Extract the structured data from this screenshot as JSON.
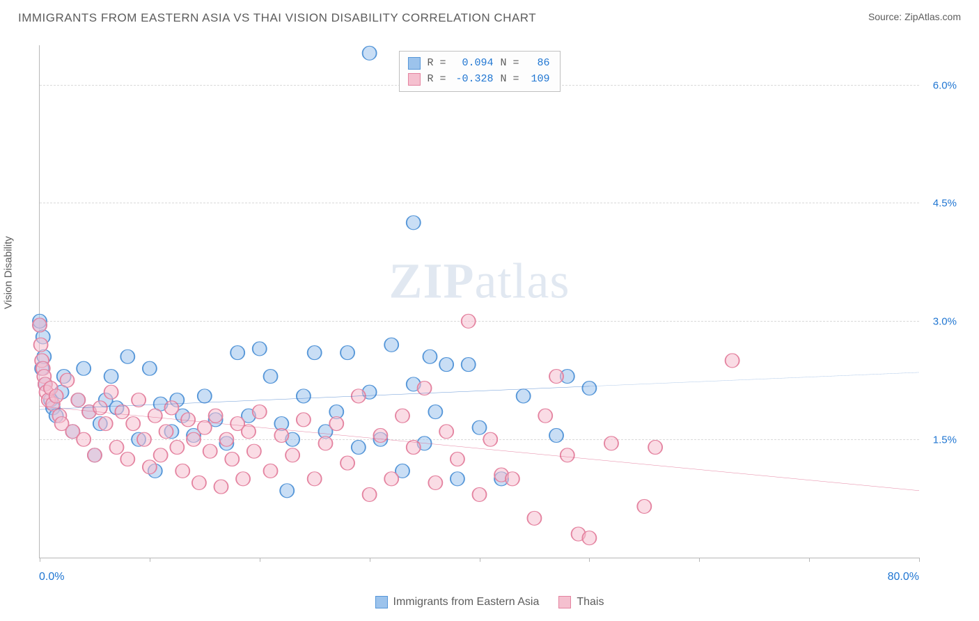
{
  "header": {
    "title": "IMMIGRANTS FROM EASTERN ASIA VS THAI VISION DISABILITY CORRELATION CHART",
    "source_label": "Source:",
    "source_name": "ZipAtlas.com"
  },
  "watermark": {
    "zip": "ZIP",
    "atlas": "atlas"
  },
  "chart": {
    "type": "scatter",
    "y_axis_title": "Vision Disability",
    "xlim": [
      0,
      80
    ],
    "ylim": [
      0,
      6.5
    ],
    "x_min_label": "0.0%",
    "x_max_label": "80.0%",
    "x_ticks": [
      0,
      10,
      20,
      30,
      40,
      50,
      60,
      70,
      80
    ],
    "y_gridlines": [
      1.5,
      3.0,
      4.5,
      6.0
    ],
    "y_tick_labels": [
      "1.5%",
      "3.0%",
      "4.5%",
      "6.0%"
    ],
    "background_color": "#ffffff",
    "grid_color": "#d9d9d9",
    "axis_color": "#b7b7b7",
    "label_color": "#2076d2",
    "text_color": "#5c5c5c",
    "point_radius": 10,
    "point_opacity": 0.55,
    "series": [
      {
        "name": "Immigrants from Eastern Asia",
        "fill_color": "#9cc3ec",
        "stroke_color": "#5596d8",
        "line_color": "#1f66c1",
        "r_value": "0.094",
        "n_value": "86",
        "trend": {
          "y0": 1.88,
          "y1": 2.35,
          "solid_until_x": 50
        },
        "points": [
          [
            0.0,
            2.95
          ],
          [
            0.0,
            3.0
          ],
          [
            0.2,
            2.4
          ],
          [
            0.3,
            2.8
          ],
          [
            0.4,
            2.55
          ],
          [
            0.5,
            2.2
          ],
          [
            30.0,
            6.4
          ],
          [
            34.0,
            4.25
          ],
          [
            1.0,
            2.0
          ],
          [
            1.2,
            1.9
          ],
          [
            1.5,
            1.8
          ],
          [
            2.0,
            2.1
          ],
          [
            2.2,
            2.3
          ],
          [
            3.0,
            1.6
          ],
          [
            3.5,
            2.0
          ],
          [
            4.0,
            2.4
          ],
          [
            4.5,
            1.85
          ],
          [
            5.0,
            1.3
          ],
          [
            5.5,
            1.7
          ],
          [
            6.0,
            2.0
          ],
          [
            6.5,
            2.3
          ],
          [
            7.0,
            1.9
          ],
          [
            8.0,
            2.55
          ],
          [
            9.0,
            1.5
          ],
          [
            10.0,
            2.4
          ],
          [
            10.5,
            1.1
          ],
          [
            11.0,
            1.95
          ],
          [
            12.0,
            1.6
          ],
          [
            12.5,
            2.0
          ],
          [
            13.0,
            1.8
          ],
          [
            14.0,
            1.55
          ],
          [
            15.0,
            2.05
          ],
          [
            16.0,
            1.75
          ],
          [
            17.0,
            1.45
          ],
          [
            18.0,
            2.6
          ],
          [
            19.0,
            1.8
          ],
          [
            20.0,
            2.65
          ],
          [
            21.0,
            2.3
          ],
          [
            22.0,
            1.7
          ],
          [
            22.5,
            0.85
          ],
          [
            23.0,
            1.5
          ],
          [
            24.0,
            2.05
          ],
          [
            25.0,
            2.6
          ],
          [
            26.0,
            1.6
          ],
          [
            27.0,
            1.85
          ],
          [
            28.0,
            2.6
          ],
          [
            29.0,
            1.4
          ],
          [
            30.0,
            2.1
          ],
          [
            31.0,
            1.5
          ],
          [
            32.0,
            2.7
          ],
          [
            33.0,
            1.1
          ],
          [
            34.0,
            2.2
          ],
          [
            35.0,
            1.45
          ],
          [
            35.5,
            2.55
          ],
          [
            36.0,
            1.85
          ],
          [
            37.0,
            2.45
          ],
          [
            38.0,
            1.0
          ],
          [
            39.0,
            2.45
          ],
          [
            40.0,
            1.65
          ],
          [
            42.0,
            1.0
          ],
          [
            44.0,
            2.05
          ],
          [
            47.0,
            1.55
          ],
          [
            48.0,
            2.3
          ],
          [
            50.0,
            2.15
          ]
        ]
      },
      {
        "name": "Thais",
        "fill_color": "#f5c0cf",
        "stroke_color": "#e483a0",
        "line_color": "#d94b77",
        "r_value": "-0.328",
        "n_value": "109",
        "trend": {
          "y0": 1.92,
          "y1": 0.85,
          "solid_until_x": 80
        },
        "points": [
          [
            0.0,
            2.95
          ],
          [
            0.1,
            2.7
          ],
          [
            0.2,
            2.5
          ],
          [
            0.3,
            2.4
          ],
          [
            0.4,
            2.3
          ],
          [
            0.5,
            2.2
          ],
          [
            0.6,
            2.1
          ],
          [
            0.8,
            2.0
          ],
          [
            1.0,
            2.15
          ],
          [
            1.2,
            1.95
          ],
          [
            1.5,
            2.05
          ],
          [
            1.8,
            1.8
          ],
          [
            2.0,
            1.7
          ],
          [
            2.5,
            2.25
          ],
          [
            3.0,
            1.6
          ],
          [
            3.5,
            2.0
          ],
          [
            4.0,
            1.5
          ],
          [
            4.5,
            1.85
          ],
          [
            5.0,
            1.3
          ],
          [
            5.5,
            1.9
          ],
          [
            6.0,
            1.7
          ],
          [
            6.5,
            2.1
          ],
          [
            7.0,
            1.4
          ],
          [
            7.5,
            1.85
          ],
          [
            8.0,
            1.25
          ],
          [
            8.5,
            1.7
          ],
          [
            9.0,
            2.0
          ],
          [
            9.5,
            1.5
          ],
          [
            10.0,
            1.15
          ],
          [
            10.5,
            1.8
          ],
          [
            11.0,
            1.3
          ],
          [
            11.5,
            1.6
          ],
          [
            12.0,
            1.9
          ],
          [
            12.5,
            1.4
          ],
          [
            13.0,
            1.1
          ],
          [
            13.5,
            1.75
          ],
          [
            14.0,
            1.5
          ],
          [
            14.5,
            0.95
          ],
          [
            15.0,
            1.65
          ],
          [
            15.5,
            1.35
          ],
          [
            16.0,
            1.8
          ],
          [
            16.5,
            0.9
          ],
          [
            17.0,
            1.5
          ],
          [
            17.5,
            1.25
          ],
          [
            18.0,
            1.7
          ],
          [
            18.5,
            1.0
          ],
          [
            19.0,
            1.6
          ],
          [
            19.5,
            1.35
          ],
          [
            20.0,
            1.85
          ],
          [
            21.0,
            1.1
          ],
          [
            22.0,
            1.55
          ],
          [
            23.0,
            1.3
          ],
          [
            24.0,
            1.75
          ],
          [
            25.0,
            1.0
          ],
          [
            26.0,
            1.45
          ],
          [
            27.0,
            1.7
          ],
          [
            28.0,
            1.2
          ],
          [
            29.0,
            2.05
          ],
          [
            30.0,
            0.8
          ],
          [
            31.0,
            1.55
          ],
          [
            32.0,
            1.0
          ],
          [
            33.0,
            1.8
          ],
          [
            34.0,
            1.4
          ],
          [
            35.0,
            2.15
          ],
          [
            36.0,
            0.95
          ],
          [
            37.0,
            1.6
          ],
          [
            38.0,
            1.25
          ],
          [
            39.0,
            3.0
          ],
          [
            40.0,
            0.8
          ],
          [
            41.0,
            1.5
          ],
          [
            42.0,
            1.05
          ],
          [
            43.0,
            1.0
          ],
          [
            45.0,
            0.5
          ],
          [
            46.0,
            1.8
          ],
          [
            47.0,
            2.3
          ],
          [
            48.0,
            1.3
          ],
          [
            49.0,
            0.3
          ],
          [
            50.0,
            0.25
          ],
          [
            52.0,
            1.45
          ],
          [
            55.0,
            0.65
          ],
          [
            56.0,
            1.4
          ],
          [
            63.0,
            2.5
          ]
        ]
      }
    ]
  },
  "legend_box": {
    "r_label": "R =",
    "n_label": "N ="
  }
}
